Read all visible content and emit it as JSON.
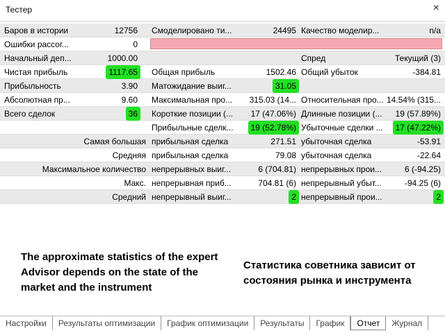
{
  "window": {
    "title": "Тестер",
    "close": "×"
  },
  "table": {
    "rows": [
      {
        "label1": "Баров в истории",
        "value1": "12756",
        "label2": "Смоделировано ти...",
        "value2": "24495",
        "label3": "Качество моделир...",
        "value3": "n/a"
      },
      {
        "label1": "Ошибки рассог...",
        "value1": "0",
        "error_box": true
      },
      {
        "label1": "Начальный деп...",
        "value1": "1000.00",
        "label3": "Спред",
        "value3": "Текущий (3)"
      },
      {
        "label1": "Чистая прибыль",
        "value1": "1117.65",
        "label2": "Общая прибыль",
        "value2": "1502.46",
        "label3": "Общий убыток",
        "value3": "-384.81",
        "highlight": [
          "value1"
        ]
      },
      {
        "label1": "Прибыльность",
        "value1": "3.90",
        "label2": "Матожидание выиг...",
        "value2": "31.05",
        "highlight": [
          "value2"
        ]
      },
      {
        "label1": "Абсолютная пр...",
        "value1": "9.60",
        "label2": "Максимальная про...",
        "value2": "315.03 (14...",
        "label3": "Относительная про...",
        "value3": "14.54% (315..."
      },
      {
        "label1": "Всего сделок",
        "value1": "36",
        "label2": "Короткие позиции (...",
        "value2": "17 (47.06%)",
        "label3": "Длинные позиции (...",
        "value3": "19 (57.89%)",
        "highlight": [
          "value1"
        ]
      },
      {
        "label2": "Прибыльные сделк...",
        "value2": "19 (52.78%)",
        "label3": "Убыточные сделки ...",
        "value3": "17 (47.22%)",
        "highlight": [
          "value2",
          "value3"
        ]
      },
      {
        "caption": "Самая большая",
        "label2": "прибыльная сделка",
        "value2": "271.51",
        "label3": "убыточная сделка",
        "value3": "-53.91"
      },
      {
        "caption": "Средняя",
        "label2": "прибыльная сделка",
        "value2": "79.08",
        "label3": "убыточная сделка",
        "value3": "-22.64"
      },
      {
        "caption": "Максимальное количество",
        "label2": "непрерывных выиг...",
        "value2": "6 (704.81)",
        "label3": "непрерывных прои...",
        "value3": "6 (-94.25)"
      },
      {
        "caption": "Макс.",
        "label2": "непрерывная приб...",
        "value2": "704.81 (6)",
        "label3": "непрерывный убыт...",
        "value3": "-94.25 (6)"
      },
      {
        "caption": "Средний",
        "label2": "непрерывный выиг...",
        "value2": "2",
        "label3": "непрерывный прои...",
        "value3": "2",
        "highlight": [
          "value2",
          "value3"
        ]
      }
    ]
  },
  "notes": {
    "english": "The approximate statistics of the expert Advisor depends on the state of the market and the instrument",
    "russian": "Статистика советника зависит от состояния рынка и инструмента"
  },
  "tabs": {
    "items": [
      "Настройки",
      "Результаты оптимизации",
      "График оптимизации",
      "Результаты",
      "График",
      "Отчет",
      "Журнал"
    ],
    "active": 5
  }
}
